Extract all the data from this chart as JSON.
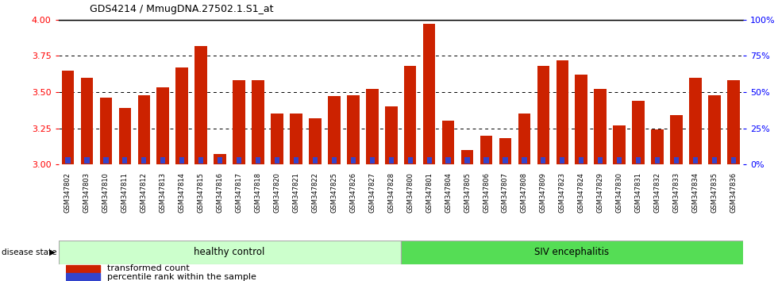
{
  "title": "GDS4214 / MmugDNA.27502.1.S1_at",
  "samples": [
    "GSM347802",
    "GSM347803",
    "GSM347810",
    "GSM347811",
    "GSM347812",
    "GSM347813",
    "GSM347814",
    "GSM347815",
    "GSM347816",
    "GSM347817",
    "GSM347818",
    "GSM347820",
    "GSM347821",
    "GSM347822",
    "GSM347825",
    "GSM347826",
    "GSM347827",
    "GSM347828",
    "GSM347800",
    "GSM347801",
    "GSM347804",
    "GSM347805",
    "GSM347806",
    "GSM347807",
    "GSM347808",
    "GSM347809",
    "GSM347823",
    "GSM347824",
    "GSM347829",
    "GSM347830",
    "GSM347831",
    "GSM347832",
    "GSM347833",
    "GSM347834",
    "GSM347835",
    "GSM347836"
  ],
  "red_values": [
    3.65,
    3.6,
    3.46,
    3.39,
    3.48,
    3.53,
    3.67,
    3.82,
    3.07,
    3.58,
    3.58,
    3.35,
    3.35,
    3.32,
    3.47,
    3.48,
    3.52,
    3.4,
    3.68,
    3.97,
    3.3,
    3.1,
    3.2,
    3.18,
    3.35,
    3.68,
    3.72,
    3.62,
    3.52,
    3.27,
    3.44,
    3.24,
    3.34,
    3.6,
    3.48,
    3.58
  ],
  "blue_values": [
    0.06,
    0.06,
    0.06,
    0.06,
    0.06,
    0.06,
    0.06,
    0.06,
    0.06,
    0.06,
    0.06,
    0.06,
    0.06,
    0.06,
    0.06,
    0.06,
    0.06,
    0.06,
    0.08,
    0.13,
    0.08,
    0.08,
    0.13,
    0.08,
    0.08,
    0.13,
    0.13,
    0.1,
    0.1,
    0.08,
    0.1,
    0.08,
    0.1,
    0.1,
    0.1,
    0.1
  ],
  "n_healthy": 18,
  "n_siv": 18,
  "ylim_left": [
    3.0,
    4.0
  ],
  "ylim_right": [
    0,
    100
  ],
  "yticks_left": [
    3.0,
    3.25,
    3.5,
    3.75,
    4.0
  ],
  "yticks_right": [
    0,
    25,
    50,
    75,
    100
  ],
  "ytick_labels_right": [
    "0%",
    "25%",
    "50%",
    "75%",
    "100%"
  ],
  "red_color": "#cc2200",
  "blue_color": "#3344cc",
  "healthy_color": "#ccffcc",
  "siv_color": "#55dd55",
  "bar_width": 0.65,
  "base_value": 3.0,
  "grid_dotted_vals": [
    3.25,
    3.5,
    3.75
  ]
}
